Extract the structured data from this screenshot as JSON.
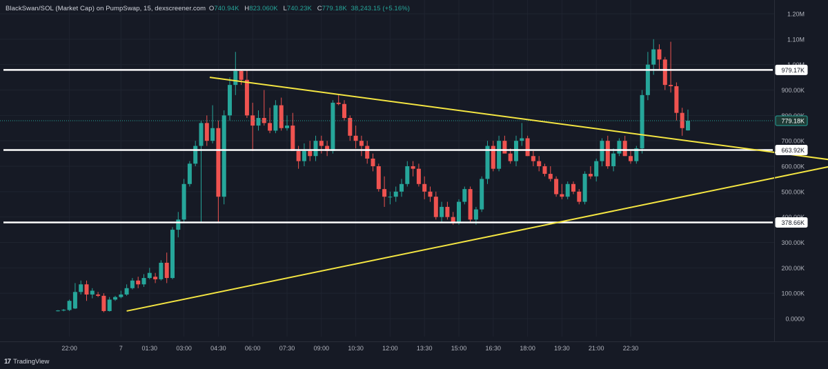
{
  "header": {
    "title": "BlackSwan/SOL (Market Cap) on PumpSwap, 15, dexscreener.com",
    "open_label": "O",
    "open": "740.94K",
    "high_label": "H",
    "high": "823.060K",
    "low_label": "L",
    "low": "740.23K",
    "close_label": "C",
    "close": "779.18K",
    "change": "38,243.15 (+5.16%)"
  },
  "watermark": {
    "logo": "17",
    "text": "TradingView"
  },
  "colors": {
    "background": "#161a25",
    "up": "#26a69a",
    "down": "#ef5350",
    "level_line": "#ffffff",
    "trend_line": "#f5e642",
    "axis_text": "#b2b5be"
  },
  "price_badges": [
    {
      "value": 979.17,
      "label": "979.17K",
      "style": "level"
    },
    {
      "value": 779.18,
      "label": "779.18K",
      "style": "current"
    },
    {
      "value": 663.92,
      "label": "663.92K",
      "style": "level"
    },
    {
      "value": 378.66,
      "label": "378.66K",
      "style": "level"
    }
  ],
  "chart_data": {
    "type": "candlestick",
    "title": "BlackSwan/SOL (Market Cap) on PumpSwap, 15, dexscreener.com",
    "y_unit": "K",
    "ylim": [
      -70,
      1280
    ],
    "y_ticks": [
      {
        "value": 1200,
        "label": "1.20M"
      },
      {
        "value": 1100,
        "label": "1.10M"
      },
      {
        "value": 1000,
        "label": "1.00M"
      },
      {
        "value": 900,
        "label": "900.00K"
      },
      {
        "value": 800,
        "label": "800.00K"
      },
      {
        "value": 700,
        "label": "700.00K"
      },
      {
        "value": 600,
        "label": "600.00K"
      },
      {
        "value": 500,
        "label": "500.00K"
      },
      {
        "value": 400,
        "label": "400.00K"
      },
      {
        "value": 300,
        "label": "300.00K"
      },
      {
        "value": 200,
        "label": "200.00K"
      },
      {
        "value": 100,
        "label": "100.00K"
      },
      {
        "value": 0,
        "label": "0.0000"
      }
    ],
    "x_ticks": [
      {
        "bar": 2,
        "label": "22:00"
      },
      {
        "bar": 11,
        "label": "7"
      },
      {
        "bar": 16,
        "label": "01:30"
      },
      {
        "bar": 22,
        "label": "03:00"
      },
      {
        "bar": 28,
        "label": "04:30"
      },
      {
        "bar": 34,
        "label": "06:00"
      },
      {
        "bar": 40,
        "label": "07:30"
      },
      {
        "bar": 46,
        "label": "09:00"
      },
      {
        "bar": 52,
        "label": "10:30"
      },
      {
        "bar": 58,
        "label": "12:00"
      },
      {
        "bar": 64,
        "label": "13:30"
      },
      {
        "bar": 70,
        "label": "15:00"
      },
      {
        "bar": 76,
        "label": "16:30"
      },
      {
        "bar": 82,
        "label": "18:00"
      },
      {
        "bar": 88,
        "label": "19:30"
      },
      {
        "bar": 94,
        "label": "21:00"
      },
      {
        "bar": 100,
        "label": "22:30"
      }
    ],
    "candles": [
      [
        0,
        30,
        34,
        28,
        32
      ],
      [
        1,
        32,
        38,
        29,
        35
      ],
      [
        2,
        34,
        75,
        30,
        70
      ],
      [
        3,
        40,
        140,
        38,
        105
      ],
      [
        4,
        105,
        150,
        95,
        135
      ],
      [
        5,
        135,
        150,
        70,
        95
      ],
      [
        6,
        95,
        120,
        80,
        110
      ],
      [
        7,
        95,
        105,
        85,
        90
      ],
      [
        8,
        90,
        100,
        25,
        30
      ],
      [
        9,
        30,
        85,
        28,
        75
      ],
      [
        10,
        75,
        90,
        70,
        85
      ],
      [
        11,
        85,
        110,
        80,
        95
      ],
      [
        12,
        95,
        135,
        90,
        120
      ],
      [
        13,
        120,
        160,
        115,
        150
      ],
      [
        14,
        150,
        165,
        120,
        135
      ],
      [
        15,
        135,
        175,
        125,
        160
      ],
      [
        16,
        160,
        200,
        155,
        180
      ],
      [
        17,
        165,
        180,
        140,
        155
      ],
      [
        18,
        155,
        230,
        150,
        220
      ],
      [
        19,
        220,
        260,
        140,
        160
      ],
      [
        20,
        160,
        360,
        155,
        350
      ],
      [
        21,
        350,
        420,
        320,
        390
      ],
      [
        22,
        390,
        550,
        380,
        530
      ],
      [
        23,
        530,
        620,
        520,
        610
      ],
      [
        24,
        610,
        700,
        600,
        680
      ],
      [
        25,
        680,
        780,
        380,
        770
      ],
      [
        26,
        770,
        800,
        680,
        700
      ],
      [
        27,
        700,
        840,
        690,
        750
      ],
      [
        28,
        750,
        780,
        380,
        480
      ],
      [
        29,
        480,
        820,
        450,
        800
      ],
      [
        30,
        800,
        950,
        780,
        920
      ],
      [
        31,
        920,
        1050,
        880,
        975
      ],
      [
        32,
        975,
        980,
        920,
        940
      ],
      [
        33,
        940,
        980,
        790,
        800
      ],
      [
        34,
        800,
        850,
        660,
        760
      ],
      [
        35,
        760,
        820,
        740,
        790
      ],
      [
        36,
        790,
        900,
        760,
        770
      ],
      [
        37,
        770,
        830,
        730,
        740
      ],
      [
        38,
        740,
        860,
        730,
        840
      ],
      [
        39,
        840,
        870,
        740,
        750
      ],
      [
        40,
        750,
        800,
        740,
        760
      ],
      [
        41,
        760,
        810,
        660,
        660
      ],
      [
        42,
        660,
        680,
        590,
        620
      ],
      [
        43,
        620,
        690,
        600,
        660
      ],
      [
        44,
        660,
        700,
        620,
        640
      ],
      [
        45,
        640,
        720,
        620,
        700
      ],
      [
        46,
        700,
        720,
        650,
        680
      ],
      [
        47,
        680,
        700,
        640,
        660
      ],
      [
        48,
        660,
        860,
        650,
        850
      ],
      [
        49,
        850,
        880,
        840,
        845
      ],
      [
        50,
        845,
        860,
        780,
        790
      ],
      [
        51,
        790,
        800,
        700,
        720
      ],
      [
        52,
        720,
        760,
        670,
        700
      ],
      [
        53,
        700,
        720,
        640,
        680
      ],
      [
        54,
        680,
        700,
        610,
        630
      ],
      [
        55,
        630,
        650,
        580,
        600
      ],
      [
        56,
        600,
        610,
        500,
        510
      ],
      [
        57,
        510,
        560,
        440,
        480
      ],
      [
        58,
        480,
        500,
        450,
        480
      ],
      [
        59,
        480,
        520,
        460,
        500
      ],
      [
        60,
        500,
        550,
        480,
        530
      ],
      [
        61,
        530,
        620,
        520,
        600
      ],
      [
        62,
        600,
        620,
        560,
        590
      ],
      [
        63,
        590,
        610,
        520,
        530
      ],
      [
        64,
        530,
        560,
        470,
        500
      ],
      [
        65,
        500,
        520,
        460,
        480
      ],
      [
        66,
        480,
        500,
        390,
        400
      ],
      [
        67,
        400,
        460,
        380,
        440
      ],
      [
        68,
        440,
        460,
        390,
        400
      ],
      [
        69,
        400,
        420,
        370,
        380
      ],
      [
        70,
        380,
        470,
        370,
        460
      ],
      [
        71,
        460,
        520,
        450,
        510
      ],
      [
        72,
        510,
        520,
        380,
        390
      ],
      [
        73,
        390,
        440,
        370,
        430
      ],
      [
        74,
        430,
        560,
        420,
        550
      ],
      [
        75,
        550,
        700,
        530,
        680
      ],
      [
        76,
        680,
        700,
        580,
        590
      ],
      [
        77,
        590,
        720,
        580,
        700
      ],
      [
        78,
        700,
        720,
        650,
        650
      ],
      [
        79,
        650,
        670,
        610,
        620
      ],
      [
        80,
        620,
        720,
        600,
        700
      ],
      [
        81,
        700,
        770,
        680,
        710
      ],
      [
        82,
        710,
        720,
        640,
        640
      ],
      [
        83,
        640,
        660,
        600,
        620
      ],
      [
        84,
        620,
        640,
        580,
        600
      ],
      [
        85,
        600,
        610,
        560,
        570
      ],
      [
        86,
        570,
        600,
        540,
        550
      ],
      [
        87,
        550,
        560,
        480,
        490
      ],
      [
        88,
        490,
        530,
        470,
        480
      ],
      [
        89,
        480,
        540,
        470,
        530
      ],
      [
        90,
        530,
        540,
        490,
        500
      ],
      [
        91,
        500,
        510,
        450,
        460
      ],
      [
        92,
        460,
        580,
        450,
        570
      ],
      [
        93,
        570,
        600,
        550,
        560
      ],
      [
        94,
        560,
        630,
        540,
        620
      ],
      [
        95,
        620,
        710,
        600,
        700
      ],
      [
        96,
        700,
        720,
        590,
        600
      ],
      [
        97,
        600,
        670,
        580,
        650
      ],
      [
        98,
        650,
        710,
        640,
        700
      ],
      [
        99,
        700,
        720,
        640,
        640
      ],
      [
        100,
        640,
        660,
        610,
        620
      ],
      [
        101,
        620,
        680,
        610,
        670
      ],
      [
        102,
        670,
        900,
        650,
        880
      ],
      [
        103,
        880,
        1050,
        860,
        1000
      ],
      [
        104,
        1000,
        1100,
        960,
        1060
      ],
      [
        105,
        1060,
        1080,
        980,
        1020
      ],
      [
        106,
        1020,
        1030,
        900,
        920
      ],
      [
        107,
        920,
        1090,
        890,
        915
      ],
      [
        108,
        915,
        930,
        780,
        810
      ],
      [
        109,
        810,
        830,
        720,
        750
      ],
      [
        110,
        741,
        823,
        740,
        779
      ]
    ],
    "bar_spacing": 8.3,
    "levels": [
      979.17,
      663.92,
      378.66
    ],
    "trendlines": [
      {
        "from": [
          26.5,
          950
        ],
        "to": [
          135,
          625
        ]
      },
      {
        "from": [
          12,
          30
        ],
        "to": [
          135,
          600
        ]
      }
    ],
    "legend_position": "top-left"
  }
}
